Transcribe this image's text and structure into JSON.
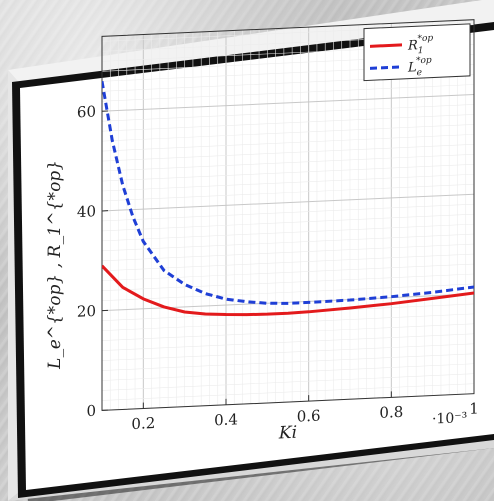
{
  "chart_data": {
    "type": "line",
    "title": "",
    "xlabel": "Ki",
    "ylabel": "L_e^{*op} , R_1^{*op}",
    "x_multiplier": "·10⁻³",
    "xlim": [
      0.1,
      1.0
    ],
    "ylim": [
      0,
      75
    ],
    "x_ticks": [
      0.2,
      0.4,
      0.6,
      0.8,
      1
    ],
    "x_tick_labels": [
      "0.2",
      "0.4",
      "0.6",
      "0.8",
      "1"
    ],
    "y_ticks": [
      0,
      20,
      40,
      60
    ],
    "y_tick_labels": [
      "0",
      "20",
      "40",
      "60"
    ],
    "grid": true,
    "legend_position": "top-right",
    "series": [
      {
        "name": "R_1^{*op}",
        "legend_base": "R",
        "legend_sub": "1",
        "legend_sup": "*op",
        "color": "#e31a1c",
        "style": "solid",
        "x": [
          0.1,
          0.15,
          0.2,
          0.25,
          0.3,
          0.35,
          0.4,
          0.45,
          0.5,
          0.55,
          0.6,
          0.7,
          0.8,
          0.9,
          1.0
        ],
        "y": [
          29,
          24.5,
          22,
          20.2,
          19,
          18.4,
          18.1,
          17.9,
          17.8,
          17.8,
          17.9,
          18.3,
          18.8,
          19.5,
          20.2
        ]
      },
      {
        "name": "L_e^{*op}",
        "legend_base": "L",
        "legend_sub": "e",
        "legend_sup": "*op",
        "color": "#1f3fd6",
        "style": "dashed",
        "x": [
          0.1,
          0.125,
          0.15,
          0.175,
          0.2,
          0.25,
          0.3,
          0.35,
          0.4,
          0.45,
          0.5,
          0.55,
          0.6,
          0.7,
          0.8,
          0.9,
          1.0
        ],
        "y": [
          66,
          54,
          45,
          38.5,
          33.5,
          27.5,
          24.5,
          22.5,
          21.2,
          20.5,
          20.0,
          19.8,
          19.8,
          19.9,
          20.2,
          20.7,
          21.4
        ]
      }
    ]
  }
}
